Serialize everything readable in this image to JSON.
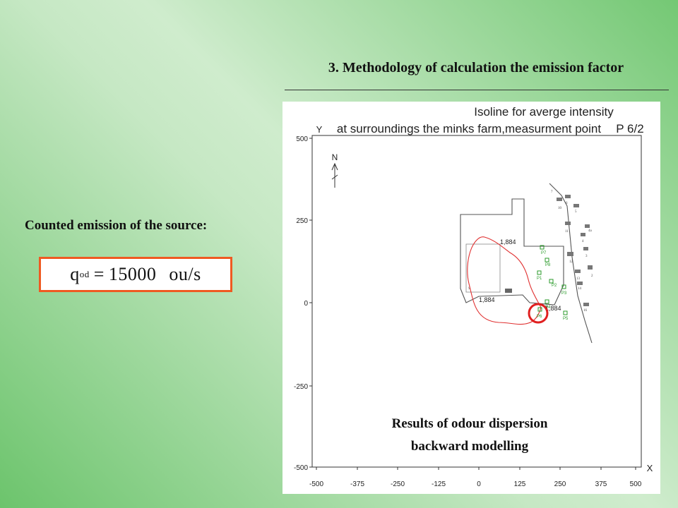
{
  "slide": {
    "title": "3. Methodology of calculation the emission factor",
    "left_heading": "Counted emission of the source:",
    "formula": {
      "symbol": "q",
      "subscript": "od",
      "operator": "=",
      "value": "15000",
      "unit": "ou/s"
    }
  },
  "figure": {
    "title_line1": "Isoline for averge intensity",
    "title_line2": "at surroundings the minks farm,measurment point",
    "point_label": "P 6/2",
    "y_axis_label": "Y",
    "x_axis_label": "X",
    "north_label": "N",
    "y_ticks": [
      "500",
      "250",
      "0",
      "-250",
      "-500"
    ],
    "x_ticks": [
      "-500",
      "-375",
      "-250",
      "-125",
      "0",
      "125",
      "250",
      "375",
      "500"
    ],
    "isoline_labels": [
      "1,884",
      "1,884",
      "1,884"
    ],
    "measurement_points": [
      "P7",
      "P8",
      "P1",
      "P2",
      "P3",
      "P4",
      "P5",
      "P6"
    ],
    "building_numbers": [
      "7",
      "6",
      "10",
      "5",
      "11",
      "4a",
      "4",
      "12",
      "3",
      "13",
      "2",
      "14",
      "16",
      "S"
    ],
    "caption_line1": "Results of odour dispersion",
    "caption_line2": "backward modelling",
    "colors": {
      "isoline": "#e03030",
      "points": "#2a9a2a",
      "highlight": "#e02020"
    }
  }
}
